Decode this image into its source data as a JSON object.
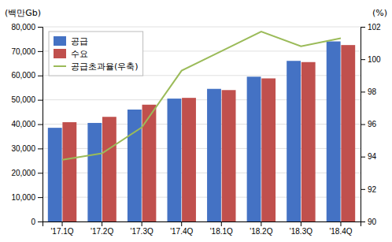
{
  "chart_data": {
    "type": "bar",
    "ylabel": "(백만Gb)",
    "y2label": "(%)",
    "categories": [
      "'17.1Q",
      "'17.2Q",
      "'17.3Q",
      "'17.4Q",
      "'18.1Q",
      "'18.2Q",
      "'18.3Q",
      "'18.4Q"
    ],
    "series": [
      {
        "name": "공급",
        "color": "#4472C4",
        "values": [
          38500,
          40500,
          46000,
          50500,
          54500,
          59500,
          66000,
          74000
        ]
      },
      {
        "name": "수요",
        "color": "#C0504D",
        "values": [
          40800,
          43000,
          48000,
          50800,
          54000,
          58800,
          65500,
          72500
        ]
      },
      {
        "name": "공급초과율(우축)",
        "type": "line",
        "axis": "y2",
        "color": "#9BBB59",
        "values": [
          93.8,
          94.2,
          95.8,
          99.3,
          100.5,
          101.7,
          100.8,
          101.3
        ]
      }
    ],
    "ylim": [
      0,
      80000
    ],
    "yticks": [
      0,
      {
        "value": 10000,
        "label": "10,000"
      },
      {
        "value": 20000,
        "label": "20,000"
      },
      {
        "value": 30000,
        "label": "30,000"
      },
      {
        "value": 40000,
        "label": "40,000"
      },
      {
        "value": 50000,
        "label": "50,000"
      },
      {
        "value": 60000,
        "label": "60,000"
      },
      {
        "value": 70000,
        "label": "70,000"
      },
      {
        "value": 80000,
        "label": "80,000"
      }
    ],
    "y2lim": [
      90,
      102
    ],
    "y2ticks": [
      90,
      92,
      94,
      96,
      98,
      100,
      102
    ],
    "grid": true,
    "legend": "upper left"
  }
}
